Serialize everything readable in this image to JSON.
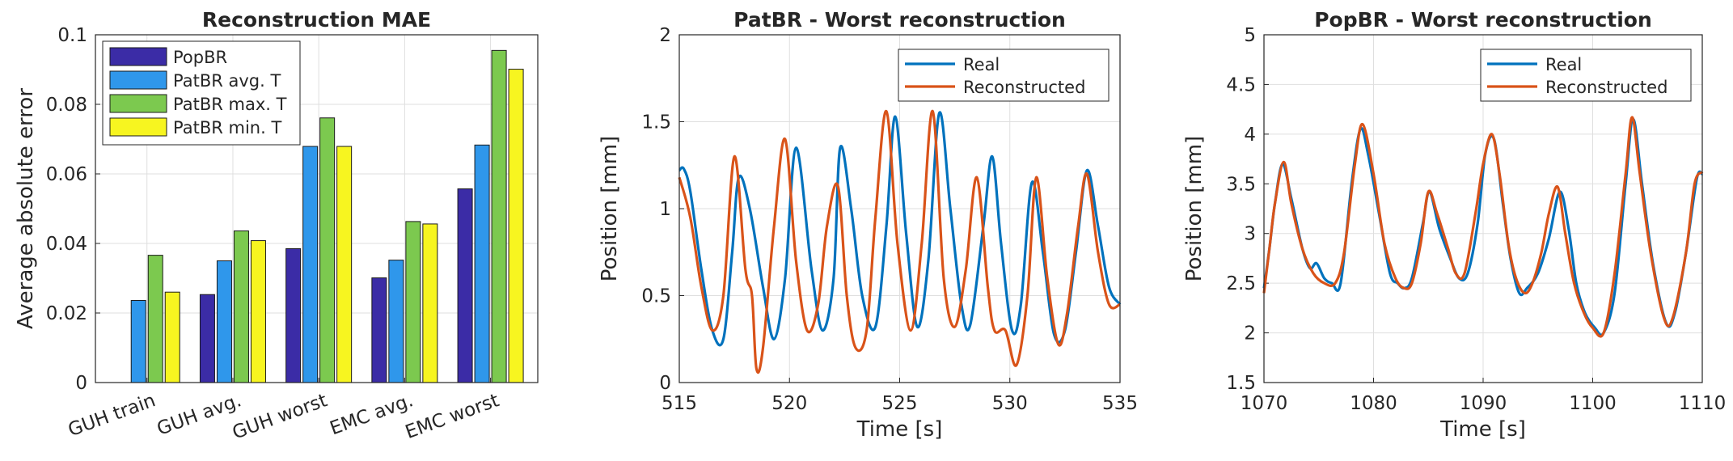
{
  "chart_data": [
    {
      "type": "bar",
      "title": "Reconstruction MAE",
      "xlabel": "",
      "ylabel": "Average absolute error",
      "ylim": [
        0,
        0.1
      ],
      "yticks": [
        0,
        0.02,
        0.04,
        0.06,
        0.08,
        0.1
      ],
      "ytick_labels": [
        "0",
        "0.02",
        "0.04",
        "0.06",
        "0.08",
        "0.1"
      ],
      "categories": [
        "GUH train",
        "GUH avg.",
        "GUH worst",
        "EMC avg.",
        "EMC worst"
      ],
      "grid": true,
      "legend": "top-left",
      "series": [
        {
          "name": "PopBR",
          "color": "#3b2ca6",
          "values": [
            0,
            0.0253,
            0.0385,
            0.0301,
            0.0557
          ]
        },
        {
          "name": "PatBR avg. T",
          "color": "#2f97eb",
          "values": [
            0.0236,
            0.035,
            0.0679,
            0.0352,
            0.0683
          ]
        },
        {
          "name": "PatBR max. T",
          "color": "#7cc94f",
          "values": [
            0.0366,
            0.0436,
            0.0761,
            0.0463,
            0.0955
          ]
        },
        {
          "name": "PatBR min. T",
          "color": "#f7f520",
          "values": [
            0.026,
            0.0408,
            0.0679,
            0.0456,
            0.0901
          ]
        }
      ]
    },
    {
      "type": "line",
      "title": "PatBR - Worst reconstruction",
      "xlabel": "Time [s]",
      "ylabel": "Position [mm]",
      "xlim": [
        515,
        535
      ],
      "ylim": [
        0,
        2
      ],
      "xticks": [
        515,
        520,
        525,
        530,
        535
      ],
      "yticks": [
        0,
        0.5,
        1,
        1.5,
        2
      ],
      "ytick_labels": [
        "0",
        "0.5",
        "1",
        "1.5",
        "2"
      ],
      "grid": true,
      "legend": "top-right",
      "series": [
        {
          "name": "Real",
          "color": "#0072bd",
          "x": [
            515.0,
            515.2,
            515.5,
            516.0,
            516.5,
            517.0,
            517.4,
            517.7,
            518.2,
            518.8,
            519.3,
            519.8,
            520.3,
            521.0,
            521.5,
            522.0,
            522.3,
            522.8,
            523.3,
            523.9,
            524.4,
            524.8,
            525.3,
            525.8,
            526.3,
            526.8,
            527.3,
            527.8,
            528.2,
            528.8,
            529.2,
            529.6,
            530.1,
            530.5,
            531.0,
            531.5,
            532.0,
            532.5,
            533.0,
            533.5,
            534.0,
            534.5,
            535.0
          ],
          "y": [
            1.22,
            1.23,
            1.1,
            0.65,
            0.3,
            0.25,
            0.75,
            1.18,
            1.0,
            0.55,
            0.25,
            0.6,
            1.35,
            0.65,
            0.3,
            0.6,
            1.35,
            1.0,
            0.5,
            0.32,
            0.9,
            1.53,
            0.85,
            0.32,
            0.7,
            1.55,
            1.0,
            0.45,
            0.33,
            0.9,
            1.3,
            0.8,
            0.3,
            0.45,
            1.15,
            0.75,
            0.28,
            0.3,
            0.75,
            1.22,
            0.9,
            0.55,
            0.45
          ]
        },
        {
          "name": "Reconstructed",
          "color": "#d95319",
          "x": [
            515.0,
            515.5,
            516.0,
            516.5,
            517.0,
            517.5,
            518.0,
            518.3,
            518.5,
            518.8,
            519.3,
            519.8,
            520.3,
            520.8,
            521.3,
            521.7,
            522.2,
            522.6,
            523.0,
            523.5,
            523.9,
            524.4,
            524.9,
            525.5,
            526.0,
            526.5,
            527.0,
            527.5,
            528.0,
            528.5,
            529.0,
            529.3,
            529.8,
            530.3,
            530.8,
            531.2,
            531.7,
            532.2,
            532.6,
            533.1,
            533.5,
            534.0,
            534.5,
            535.0
          ],
          "y": [
            1.18,
            0.95,
            0.55,
            0.3,
            0.5,
            1.3,
            0.65,
            0.5,
            0.08,
            0.2,
            0.9,
            1.4,
            0.7,
            0.3,
            0.45,
            0.9,
            1.13,
            0.5,
            0.2,
            0.3,
            0.95,
            1.56,
            0.8,
            0.3,
            0.8,
            1.56,
            0.6,
            0.32,
            0.65,
            1.18,
            0.55,
            0.3,
            0.3,
            0.1,
            0.5,
            1.18,
            0.6,
            0.22,
            0.4,
            0.9,
            1.2,
            0.75,
            0.45,
            0.45
          ]
        }
      ]
    },
    {
      "type": "line",
      "title": "PopBR - Worst reconstruction",
      "xlabel": "Time [s]",
      "ylabel": "Position [mm]",
      "xlim": [
        1070,
        1110
      ],
      "ylim": [
        1.5,
        5
      ],
      "xticks": [
        1070,
        1080,
        1090,
        1100,
        1110
      ],
      "yticks": [
        1.5,
        2,
        2.5,
        3,
        3.5,
        4,
        4.5,
        5
      ],
      "ytick_labels": [
        "1.5",
        "2",
        "2.5",
        "3",
        "3.5",
        "4",
        "4.5",
        "5"
      ],
      "grid": true,
      "legend": "top-right",
      "series": [
        {
          "name": "Real",
          "color": "#0072bd",
          "x": [
            1070.0,
            1070.5,
            1071.0,
            1071.7,
            1072.5,
            1073.5,
            1074.2,
            1074.8,
            1075.5,
            1076.2,
            1077.0,
            1078.0,
            1078.8,
            1079.5,
            1080.5,
            1081.5,
            1082.2,
            1082.8,
            1083.5,
            1084.5,
            1085.1,
            1086.0,
            1087.0,
            1087.8,
            1088.6,
            1089.5,
            1090.2,
            1091.0,
            1091.8,
            1092.5,
            1093.3,
            1094.0,
            1095.0,
            1096.0,
            1097.0,
            1097.8,
            1098.5,
            1099.3,
            1100.2,
            1101.0,
            1102.0,
            1103.0,
            1103.7,
            1104.5,
            1105.5,
            1106.7,
            1107.5,
            1108.5,
            1109.5,
            1110.0
          ],
          "y": [
            2.45,
            2.85,
            3.3,
            3.7,
            3.35,
            2.85,
            2.65,
            2.7,
            2.55,
            2.5,
            2.5,
            3.5,
            4.05,
            3.8,
            3.2,
            2.6,
            2.5,
            2.45,
            2.55,
            3.1,
            3.42,
            3.05,
            2.75,
            2.55,
            2.6,
            3.1,
            3.8,
            3.95,
            3.3,
            2.75,
            2.4,
            2.45,
            2.6,
            2.95,
            3.42,
            3.05,
            2.5,
            2.2,
            2.05,
            2.0,
            2.4,
            3.5,
            4.15,
            3.5,
            2.7,
            2.1,
            2.2,
            2.8,
            3.55,
            3.6
          ]
        },
        {
          "name": "Reconstructed",
          "color": "#d95319",
          "x": [
            1070.0,
            1070.5,
            1071.0,
            1071.8,
            1072.5,
            1073.5,
            1074.5,
            1075.5,
            1076.5,
            1077.3,
            1078.3,
            1079.0,
            1080.0,
            1081.0,
            1082.0,
            1082.8,
            1083.5,
            1084.3,
            1085.0,
            1085.8,
            1086.8,
            1087.5,
            1088.3,
            1089.3,
            1090.0,
            1090.8,
            1091.5,
            1092.3,
            1093.0,
            1093.8,
            1094.5,
            1095.3,
            1096.0,
            1096.8,
            1097.5,
            1098.3,
            1099.2,
            1100.0,
            1101.0,
            1102.0,
            1103.0,
            1103.6,
            1104.3,
            1105.3,
            1106.5,
            1107.3,
            1108.5,
            1109.3,
            1110.0
          ],
          "y": [
            2.4,
            2.85,
            3.3,
            3.72,
            3.3,
            2.85,
            2.6,
            2.5,
            2.5,
            2.8,
            3.7,
            4.1,
            3.6,
            2.9,
            2.55,
            2.45,
            2.5,
            2.9,
            3.42,
            3.2,
            2.85,
            2.6,
            2.6,
            3.2,
            3.7,
            4.0,
            3.6,
            2.9,
            2.55,
            2.4,
            2.5,
            2.8,
            3.2,
            3.47,
            3.0,
            2.5,
            2.2,
            2.05,
            2.0,
            2.6,
            3.6,
            4.17,
            3.6,
            2.8,
            2.15,
            2.15,
            2.8,
            3.5,
            3.62
          ]
        }
      ]
    }
  ]
}
